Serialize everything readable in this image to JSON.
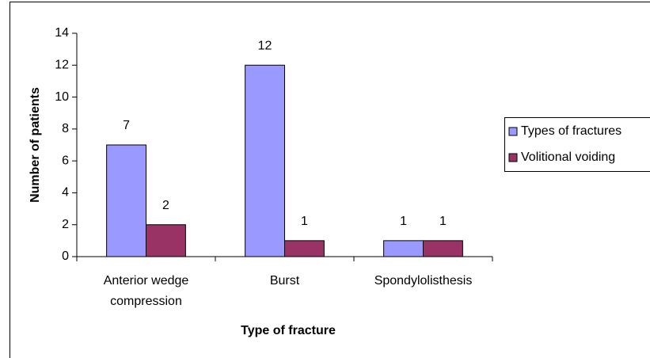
{
  "chart_data": {
    "type": "bar",
    "xlabel": "Type of fracture",
    "ylabel": "Number of patients",
    "categories": [
      "Anterior wedge compression",
      "Burst",
      "Spondylolisthesis"
    ],
    "series": [
      {
        "name": "Types of fractures",
        "color": "#9999ff",
        "values": [
          7,
          12,
          1
        ]
      },
      {
        "name": "Volitional voiding",
        "color": "#993366",
        "values": [
          2,
          1,
          1
        ]
      }
    ],
    "ylim": [
      0,
      14
    ],
    "yticks": [
      0,
      2,
      4,
      6,
      8,
      10,
      12,
      14
    ],
    "legend": "right"
  }
}
